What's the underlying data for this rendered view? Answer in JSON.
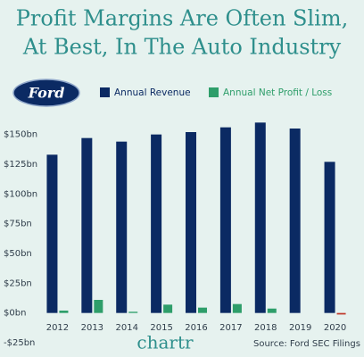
{
  "chart_data": {
    "type": "bar",
    "title": [
      "Profit Margins Are Often Slim,",
      "At Best, In The Auto Industry"
    ],
    "logo_text": "Ford",
    "categories": [
      "2012",
      "2013",
      "2014",
      "2015",
      "2016",
      "2017",
      "2018",
      "2019",
      "2020"
    ],
    "series": [
      {
        "name": "Annual Revenue",
        "color": "#0b2a63",
        "values": [
          133,
          147,
          144,
          150,
          152,
          156,
          160,
          155,
          127
        ]
      },
      {
        "name": "Annual Net Profit / Loss",
        "color": "#2e9e6a",
        "negative_color": "#c0392b",
        "values": [
          2,
          11,
          1,
          7,
          4.5,
          7.5,
          3.7,
          0,
          -1.3
        ]
      }
    ],
    "ylim": [
      -25,
      158
    ],
    "yticks": [
      {
        "value": -25,
        "label": "-$25bn"
      },
      {
        "value": 0,
        "label": "$0bn"
      },
      {
        "value": 25,
        "label": "$25bn"
      },
      {
        "value": 50,
        "label": "$50bn"
      },
      {
        "value": 75,
        "label": "$75bn"
      },
      {
        "value": 100,
        "label": "$100bn"
      },
      {
        "value": 125,
        "label": "$125bn"
      },
      {
        "value": 150,
        "label": "$150bn"
      }
    ],
    "grid": false,
    "branding": "chartr",
    "source": "Source: Ford SEC Filings"
  }
}
